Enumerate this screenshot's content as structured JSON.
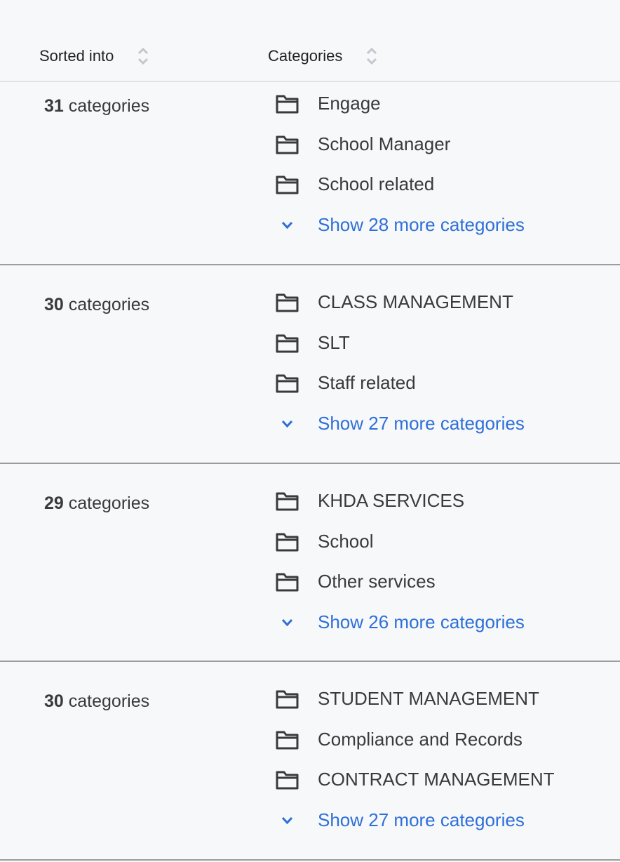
{
  "header": {
    "col1": "Sorted into",
    "col2": "Categories",
    "sort_icon": "sort-up-down-icon"
  },
  "groups": [
    {
      "count": "31",
      "count_suffix": "categories",
      "items": [
        "Engage",
        "School Manager",
        "School related"
      ],
      "more": "Show 28 more categories"
    },
    {
      "count": "30",
      "count_suffix": "categories",
      "items": [
        "CLASS MANAGEMENT",
        "SLT",
        "Staff related"
      ],
      "more": "Show 27 more categories"
    },
    {
      "count": "29",
      "count_suffix": "categories",
      "items": [
        "KHDA SERVICES",
        "School",
        "Other services"
      ],
      "more": "Show 26 more categories"
    },
    {
      "count": "30",
      "count_suffix": "categories",
      "items": [
        "STUDENT MANAGEMENT",
        "Compliance and Records",
        "CONTRACT MANAGEMENT"
      ],
      "more": "Show 27 more categories"
    }
  ],
  "colors": {
    "link": "#2f6fd8",
    "text": "#3a3a3a",
    "background": "#f6f8fa",
    "divider": "#9c9c9c"
  }
}
